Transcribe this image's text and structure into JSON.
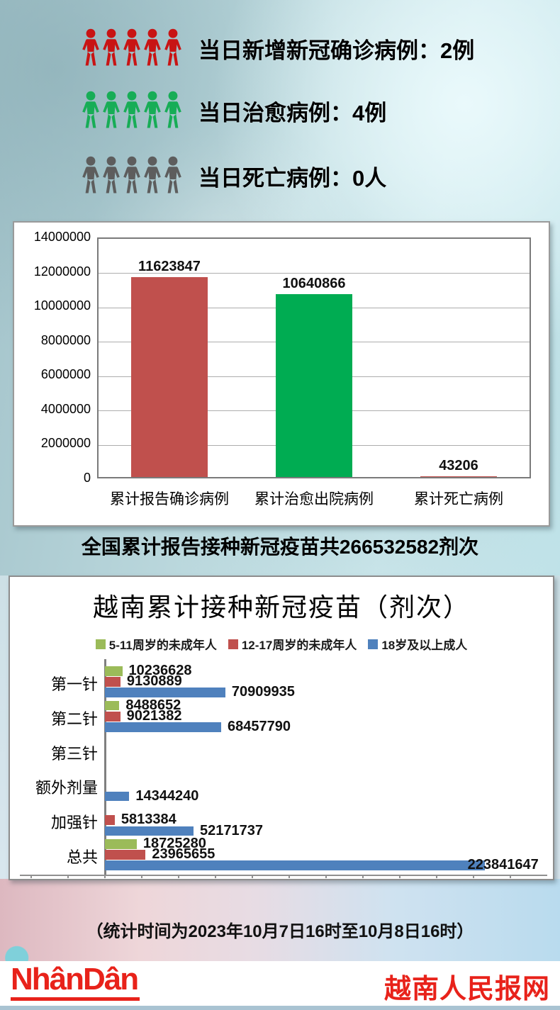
{
  "daily_stats": {
    "rows": [
      {
        "text": "当日新增新冠确诊病例：2例",
        "icon": "person-icon",
        "color": "#c81414"
      },
      {
        "text": "当日治愈病例：4例",
        "icon": "person-icon",
        "color": "#17ad56"
      },
      {
        "text": "当日死亡病例：0人",
        "icon": "person-icon",
        "color": "#5d5d5d"
      }
    ]
  },
  "vaccine_headline": "全国累计报告接种新冠疫苗共266532582剂次",
  "timestamp_note": "（统计时间为2023年10月7日16时至10月8日16时）",
  "footer": {
    "logo_text": "NhânDân",
    "site_name": "越南人民报网",
    "brand_color": "#e8221a"
  },
  "chart_data": [
    {
      "type": "bar",
      "title": "",
      "categories": [
        "累计报告确诊病例",
        "累计治愈出院病例",
        "累计死亡病例"
      ],
      "values": [
        11623847,
        10640866,
        43206
      ],
      "colors": [
        "#c0504d",
        "#00ac52",
        "#c0504d"
      ],
      "ylim": [
        0,
        14000000
      ],
      "ytick_step": 2000000,
      "yticks": [
        0,
        2000000,
        4000000,
        6000000,
        8000000,
        10000000,
        12000000,
        14000000
      ],
      "grid": true,
      "legend_position": "none"
    },
    {
      "type": "bar",
      "orientation": "horizontal",
      "title": "越南累计接种新冠疫苗（剂次）",
      "categories": [
        "第一针",
        "第二针",
        "第三针",
        "额外剂量",
        "加强针",
        "总共"
      ],
      "series": [
        {
          "name": "5-11周岁的未成年人",
          "color": "#9bbb59",
          "values": [
            10236628,
            8488652,
            null,
            null,
            null,
            18725280
          ]
        },
        {
          "name": "12-17周岁的未成年人",
          "color": "#c0504d",
          "values": [
            9130889,
            9021382,
            null,
            null,
            5813384,
            23965655
          ]
        },
        {
          "name": "18岁及以上成人",
          "color": "#4f81bd",
          "values": [
            70909935,
            68457790,
            null,
            14344240,
            52171737,
            223841647
          ]
        }
      ],
      "xlim": [
        0,
        260000000
      ],
      "grid": false,
      "legend_position": "top"
    }
  ]
}
